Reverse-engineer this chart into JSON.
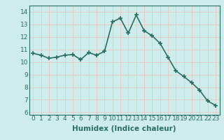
{
  "x": [
    0,
    1,
    2,
    3,
    4,
    5,
    6,
    7,
    8,
    9,
    10,
    11,
    12,
    13,
    14,
    15,
    16,
    17,
    18,
    19,
    20,
    21,
    22,
    23
  ],
  "y": [
    10.7,
    10.55,
    10.3,
    10.4,
    10.55,
    10.6,
    10.2,
    10.75,
    10.55,
    10.85,
    13.2,
    13.5,
    12.3,
    13.75,
    12.5,
    12.1,
    11.5,
    10.4,
    9.3,
    8.85,
    8.35,
    7.75,
    6.9,
    6.55
  ],
  "title": "",
  "xlabel": "Humidex (Indice chaleur)",
  "ylabel": "",
  "xlim": [
    -0.5,
    23.5
  ],
  "ylim": [
    5.8,
    14.5
  ],
  "yticks": [
    6,
    7,
    8,
    9,
    10,
    11,
    12,
    13,
    14
  ],
  "xticks": [
    0,
    1,
    2,
    3,
    4,
    5,
    6,
    7,
    8,
    9,
    10,
    11,
    12,
    13,
    14,
    15,
    16,
    17,
    18,
    19,
    20,
    21,
    22,
    23
  ],
  "line_color": "#2d6e63",
  "marker": "+",
  "marker_size": 5,
  "marker_lw": 1.2,
  "line_width": 1.2,
  "bg_color": "#ceecea",
  "grid_color": "#e8c8c8",
  "axes_color": "#2d6e63",
  "tick_color": "#2d6e63",
  "label_color": "#2d6e63",
  "font_size_label": 7.5,
  "font_size_tick": 6.5
}
